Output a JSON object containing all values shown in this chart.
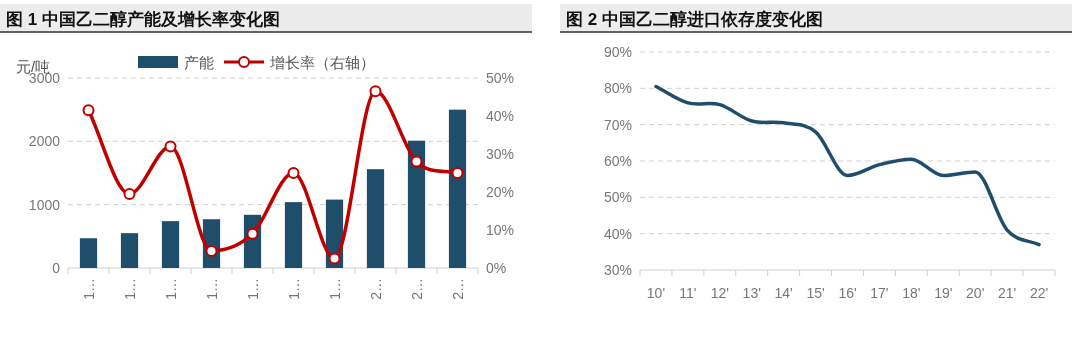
{
  "chart_data": [
    {
      "type": "bar",
      "title": "图 1 中国乙二醇产能及增长率变化图",
      "ylabel": "元/吨",
      "legend": "top",
      "grid": "y",
      "categories": [
        "1…",
        "1…",
        "1…",
        "1…",
        "1…",
        "1…",
        "1…",
        "2…",
        "2…",
        "2…"
      ],
      "ylim": [
        0,
        3000
      ],
      "yticks": [
        0,
        1000,
        2000,
        3000
      ],
      "y2lim": [
        0,
        50
      ],
      "y2ticks": [
        {
          "value": 0,
          "label": "0%"
        },
        {
          "value": 10,
          "label": "10%"
        },
        {
          "value": 20,
          "label": "20%"
        },
        {
          "value": 30,
          "label": "30%"
        },
        {
          "value": 40,
          "label": "40%"
        },
        {
          "value": 50,
          "label": "50%"
        }
      ],
      "series": [
        {
          "name": "产能",
          "color": "#1f4e6b",
          "values": [
            470,
            550,
            740,
            770,
            840,
            1040,
            1080,
            1560,
            2010,
            2500
          ]
        },
        {
          "name": "增长率（右轴）",
          "type": "line",
          "axis": "y2",
          "color": "#c00000",
          "marker": "circle",
          "values": [
            41.5,
            19.5,
            32,
            4.5,
            9,
            25,
            2.5,
            46.5,
            28,
            25
          ]
        }
      ]
    },
    {
      "type": "line",
      "title": "图 2 中国乙二醇进口依存度变化图",
      "grid": "y",
      "categories": [
        "10'",
        "11'",
        "12'",
        "13'",
        "14'",
        "15'",
        "16'",
        "17'",
        "18'",
        "19'",
        "20'",
        "21'",
        "22'"
      ],
      "ylim": [
        30,
        90
      ],
      "yticks": [
        {
          "value": 30,
          "label": "30%"
        },
        {
          "value": 40,
          "label": "40%"
        },
        {
          "value": 50,
          "label": "50%"
        },
        {
          "value": 60,
          "label": "60%"
        },
        {
          "value": 70,
          "label": "70%"
        },
        {
          "value": 80,
          "label": "80%"
        },
        {
          "value": 90,
          "label": "90%"
        }
      ],
      "series": [
        {
          "color": "#1f4e6b",
          "values": [
            80.5,
            76,
            75.5,
            71,
            70.5,
            68,
            56,
            59,
            60.5,
            56,
            57,
            41,
            37
          ]
        }
      ]
    }
  ]
}
